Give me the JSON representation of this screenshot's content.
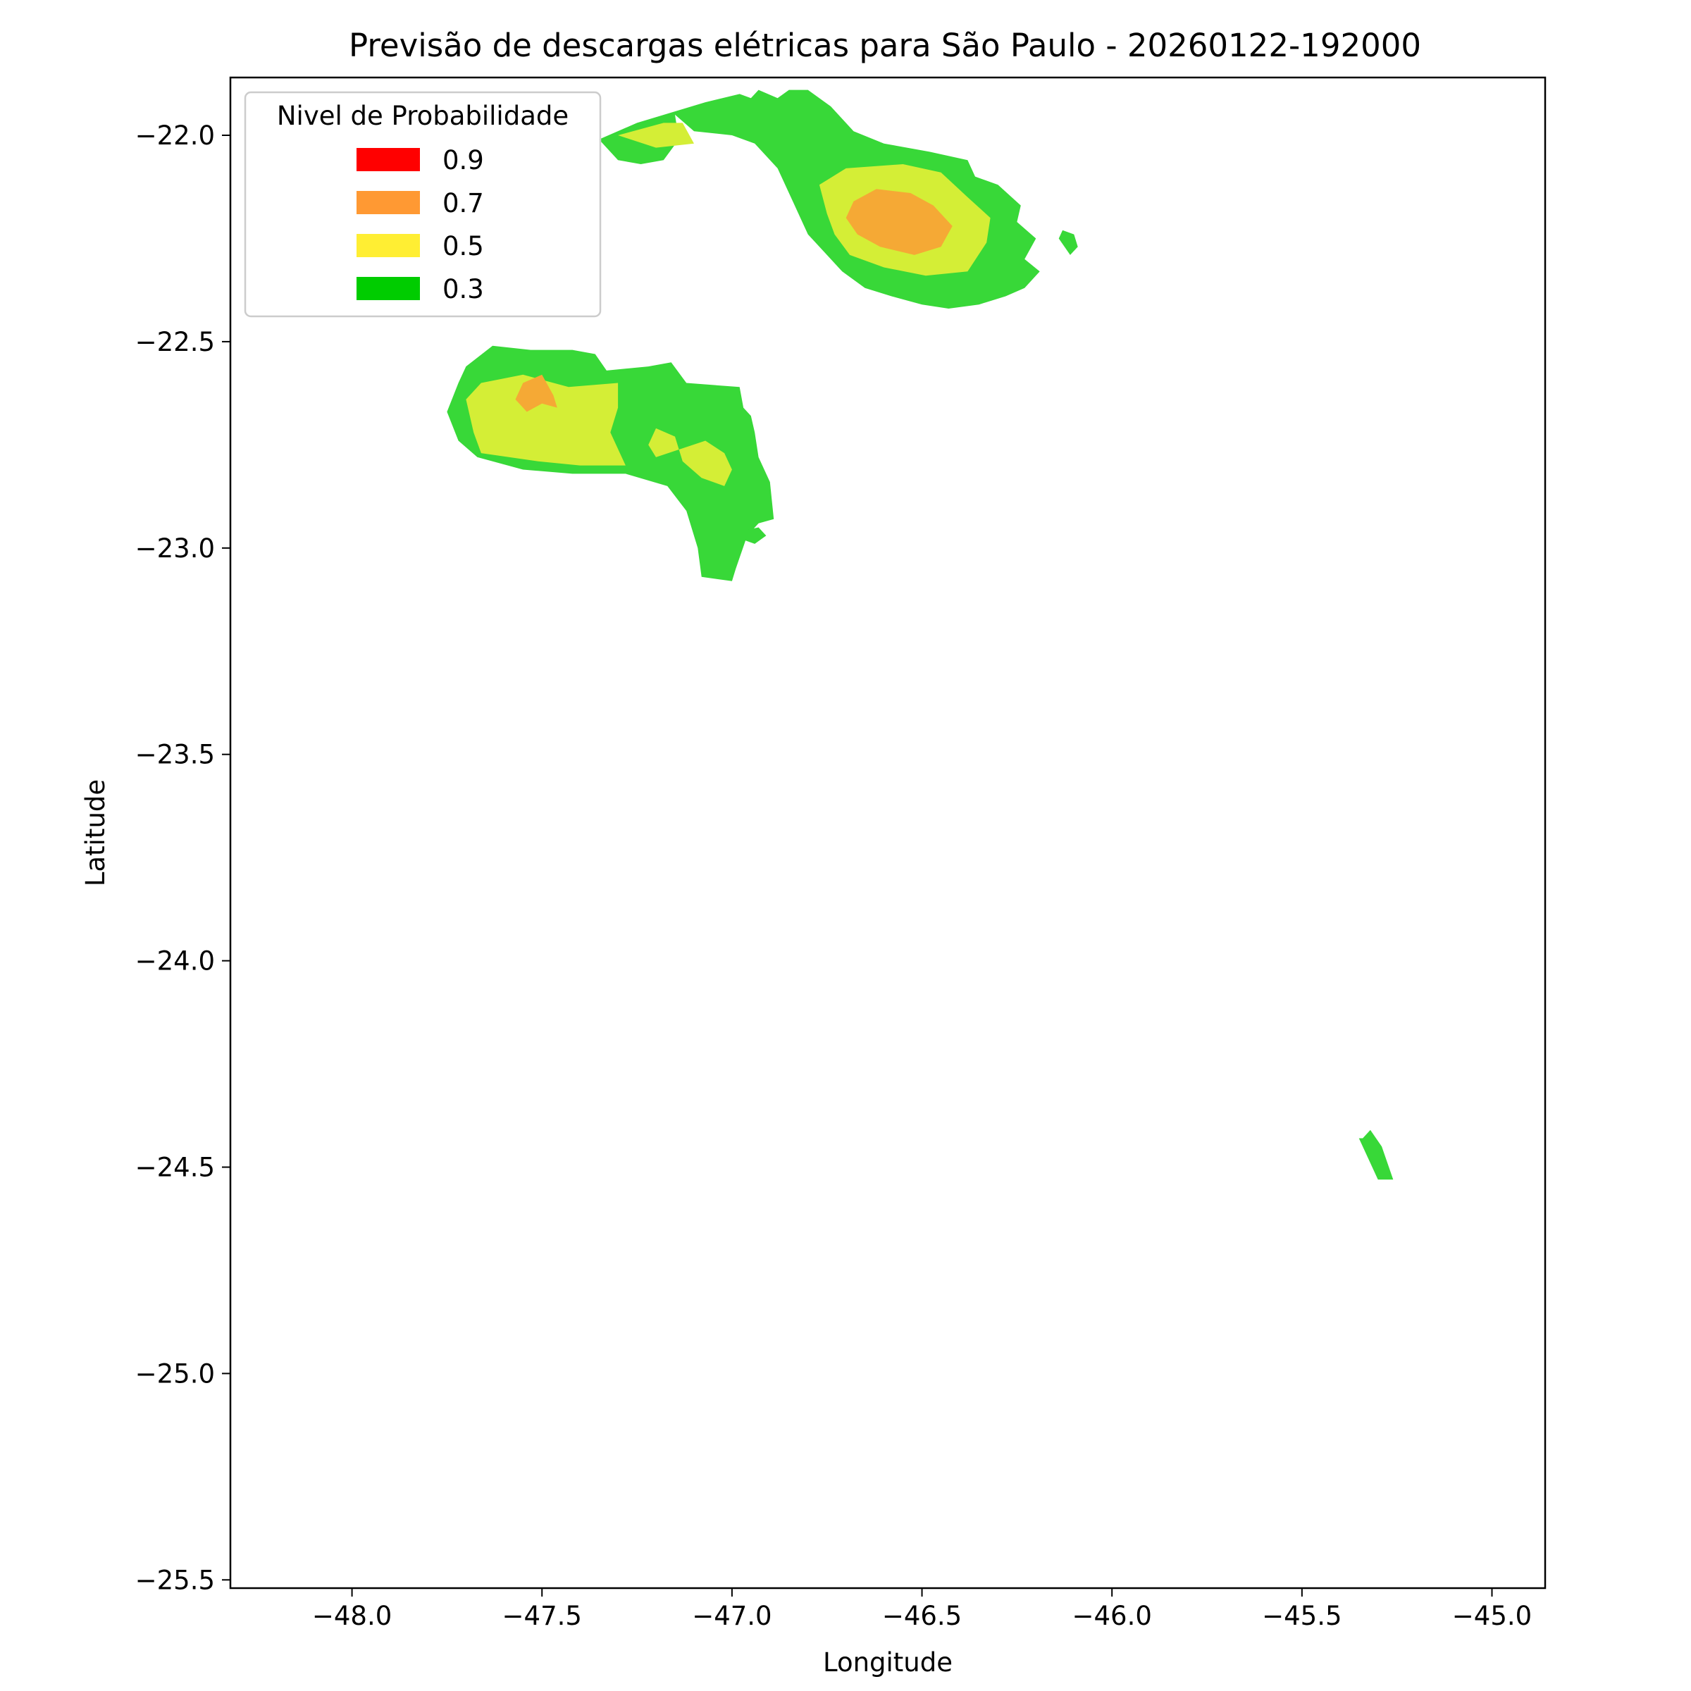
{
  "chart_data": {
    "type": "heatmap",
    "title": "Previsão de descargas elétricas para São Paulo - 20260122-192000",
    "xlabel": "Longitude",
    "ylabel": "Latitude",
    "xlim": [
      -48.32,
      -44.86
    ],
    "ylim": [
      -25.52,
      -21.86
    ],
    "x_ticks": [
      -48.0,
      -47.5,
      -47.0,
      -46.5,
      -46.0,
      -45.5,
      -45.0
    ],
    "x_tick_labels": [
      "−48.0",
      "−47.5",
      "−47.0",
      "−46.5",
      "−46.0",
      "−45.5",
      "−45.0"
    ],
    "y_ticks": [
      -22.0,
      -22.5,
      -23.0,
      -23.5,
      -24.0,
      -24.5,
      -25.0,
      -25.5
    ],
    "y_tick_labels": [
      "−22.0",
      "−22.5",
      "−23.0",
      "−23.5",
      "−24.0",
      "−24.5",
      "−25.0",
      "−25.5"
    ],
    "grid": false,
    "legend": {
      "title": "Nivel de Probabilidade",
      "placement": "top-left",
      "entries": [
        {
          "label": "0.9",
          "color": "#ff0000"
        },
        {
          "label": "0.7",
          "color": "#ff9933"
        },
        {
          "label": "0.5",
          "color": "#ffee33"
        },
        {
          "label": "0.3",
          "color": "#00cc00"
        }
      ]
    },
    "fill_colors": {
      "0.3": "#38d838",
      "0.5": "#d4ee36",
      "0.7": "#f5a935",
      "0.9": "#ff0000"
    },
    "regions": [
      {
        "level": 0.3,
        "points": [
          [
            -47.35,
            -22.01
          ],
          [
            -47.25,
            -21.97
          ],
          [
            -47.07,
            -21.92
          ],
          [
            -46.98,
            -21.9
          ],
          [
            -46.95,
            -21.91
          ],
          [
            -46.93,
            -21.89
          ],
          [
            -46.88,
            -21.91
          ],
          [
            -46.85,
            -21.89
          ],
          [
            -46.8,
            -21.89
          ],
          [
            -46.74,
            -21.93
          ],
          [
            -46.68,
            -21.99
          ],
          [
            -46.6,
            -22.02
          ],
          [
            -46.48,
            -22.04
          ],
          [
            -46.38,
            -22.06
          ],
          [
            -46.36,
            -22.1
          ],
          [
            -46.3,
            -22.12
          ],
          [
            -46.24,
            -22.17
          ],
          [
            -46.25,
            -22.21
          ],
          [
            -46.2,
            -22.25
          ],
          [
            -46.23,
            -22.3
          ],
          [
            -46.19,
            -22.33
          ],
          [
            -46.23,
            -22.37
          ],
          [
            -46.28,
            -22.39
          ],
          [
            -46.35,
            -22.41
          ],
          [
            -46.43,
            -22.42
          ],
          [
            -46.5,
            -22.41
          ],
          [
            -46.58,
            -22.39
          ],
          [
            -46.65,
            -22.37
          ],
          [
            -46.71,
            -22.33
          ],
          [
            -46.76,
            -22.28
          ],
          [
            -46.8,
            -22.24
          ],
          [
            -46.84,
            -22.16
          ],
          [
            -46.88,
            -22.08
          ],
          [
            -46.94,
            -22.02
          ],
          [
            -47.0,
            -22.0
          ],
          [
            -47.1,
            -21.99
          ],
          [
            -47.15,
            -21.95
          ],
          [
            -47.14,
            -22.01
          ],
          [
            -47.18,
            -22.06
          ],
          [
            -47.24,
            -22.07
          ],
          [
            -47.3,
            -22.06
          ]
        ]
      },
      {
        "level": 0.3,
        "points": [
          [
            -46.13,
            -22.23
          ],
          [
            -46.1,
            -22.24
          ],
          [
            -46.09,
            -22.27
          ],
          [
            -46.11,
            -22.29
          ],
          [
            -46.14,
            -22.25
          ]
        ]
      },
      {
        "level": 0.3,
        "points": [
          [
            -47.63,
            -22.51
          ],
          [
            -47.53,
            -22.52
          ],
          [
            -47.42,
            -22.52
          ],
          [
            -47.36,
            -22.53
          ],
          [
            -47.33,
            -22.57
          ],
          [
            -47.22,
            -22.56
          ],
          [
            -47.16,
            -22.55
          ],
          [
            -47.12,
            -22.6
          ],
          [
            -46.98,
            -22.61
          ],
          [
            -46.97,
            -22.66
          ],
          [
            -46.95,
            -22.68
          ],
          [
            -46.94,
            -22.72
          ],
          [
            -46.93,
            -22.78
          ],
          [
            -46.9,
            -22.84
          ],
          [
            -46.89,
            -22.93
          ],
          [
            -46.93,
            -22.94
          ],
          [
            -46.96,
            -22.97
          ],
          [
            -46.99,
            -23.05
          ],
          [
            -47.0,
            -23.08
          ],
          [
            -47.08,
            -23.07
          ],
          [
            -47.09,
            -23.0
          ],
          [
            -47.12,
            -22.91
          ],
          [
            -47.17,
            -22.85
          ],
          [
            -47.28,
            -22.82
          ],
          [
            -47.42,
            -22.82
          ],
          [
            -47.55,
            -22.81
          ],
          [
            -47.67,
            -22.78
          ],
          [
            -47.72,
            -22.74
          ],
          [
            -47.75,
            -22.67
          ],
          [
            -47.72,
            -22.6
          ],
          [
            -47.7,
            -22.56
          ]
        ]
      },
      {
        "level": 0.3,
        "points": [
          [
            -46.98,
            -22.96
          ],
          [
            -46.93,
            -22.95
          ],
          [
            -46.91,
            -22.97
          ],
          [
            -46.94,
            -22.99
          ],
          [
            -46.97,
            -22.98
          ]
        ]
      },
      {
        "level": 0.3,
        "points": [
          [
            -45.34,
            -24.43
          ],
          [
            -45.32,
            -24.41
          ],
          [
            -45.29,
            -24.45
          ],
          [
            -45.26,
            -24.53
          ],
          [
            -45.3,
            -24.53
          ],
          [
            -45.35,
            -24.43
          ]
        ]
      },
      {
        "level": 0.5,
        "points": [
          [
            -47.3,
            -22.0
          ],
          [
            -47.18,
            -21.97
          ],
          [
            -47.13,
            -21.97
          ],
          [
            -47.1,
            -22.02
          ],
          [
            -47.2,
            -22.03
          ]
        ]
      },
      {
        "level": 0.5,
        "points": [
          [
            -46.77,
            -22.12
          ],
          [
            -46.7,
            -22.08
          ],
          [
            -46.55,
            -22.07
          ],
          [
            -46.45,
            -22.09
          ],
          [
            -46.38,
            -22.15
          ],
          [
            -46.32,
            -22.2
          ],
          [
            -46.33,
            -22.26
          ],
          [
            -46.38,
            -22.33
          ],
          [
            -46.49,
            -22.34
          ],
          [
            -46.6,
            -22.32
          ],
          [
            -46.69,
            -22.29
          ],
          [
            -46.73,
            -22.24
          ],
          [
            -46.75,
            -22.19
          ]
        ]
      },
      {
        "level": 0.5,
        "points": [
          [
            -47.66,
            -22.6
          ],
          [
            -47.55,
            -22.58
          ],
          [
            -47.43,
            -22.61
          ],
          [
            -47.3,
            -22.6
          ],
          [
            -47.3,
            -22.66
          ],
          [
            -47.32,
            -22.72
          ],
          [
            -47.28,
            -22.8
          ],
          [
            -47.4,
            -22.8
          ],
          [
            -47.51,
            -22.79
          ],
          [
            -47.66,
            -22.77
          ],
          [
            -47.68,
            -22.72
          ],
          [
            -47.7,
            -22.64
          ]
        ]
      },
      {
        "level": 0.5,
        "points": [
          [
            -47.2,
            -22.71
          ],
          [
            -47.15,
            -22.73
          ],
          [
            -47.13,
            -22.79
          ],
          [
            -47.08,
            -22.83
          ],
          [
            -47.02,
            -22.85
          ],
          [
            -47.0,
            -22.81
          ],
          [
            -47.02,
            -22.77
          ],
          [
            -47.07,
            -22.74
          ],
          [
            -47.2,
            -22.78
          ],
          [
            -47.22,
            -22.75
          ]
        ]
      },
      {
        "level": 0.7,
        "points": [
          [
            -46.68,
            -22.16
          ],
          [
            -46.62,
            -22.13
          ],
          [
            -46.53,
            -22.14
          ],
          [
            -46.47,
            -22.17
          ],
          [
            -46.42,
            -22.22
          ],
          [
            -46.45,
            -22.27
          ],
          [
            -46.52,
            -22.29
          ],
          [
            -46.61,
            -22.27
          ],
          [
            -46.67,
            -22.24
          ],
          [
            -46.7,
            -22.2
          ]
        ]
      },
      {
        "level": 0.7,
        "points": [
          [
            -47.55,
            -22.6
          ],
          [
            -47.5,
            -22.58
          ],
          [
            -47.47,
            -22.63
          ],
          [
            -47.46,
            -22.66
          ],
          [
            -47.5,
            -22.65
          ],
          [
            -47.54,
            -22.67
          ],
          [
            -47.57,
            -22.64
          ]
        ]
      }
    ]
  }
}
